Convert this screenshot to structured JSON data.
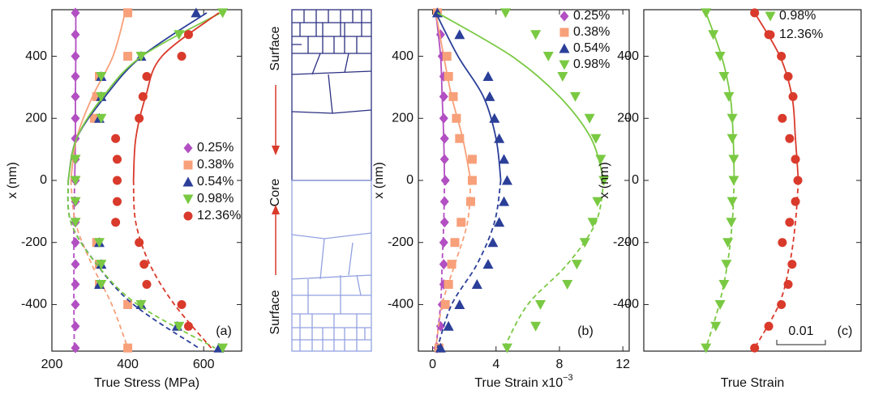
{
  "chart_data": [
    {
      "type": "scatter",
      "panel_label": "(a)",
      "xlabel": "True Stress (MPa)",
      "ylabel": "x (nm)",
      "xlim": [
        200,
        700
      ],
      "xticks": [
        200,
        400,
        600
      ],
      "ylim": [
        -550,
        550
      ],
      "yticks": [
        -400,
        -200,
        0,
        200,
        400
      ],
      "series": [
        {
          "name": "0.25%",
          "color": "#b24fc2",
          "marker": "diamond",
          "y": [
            540,
            470,
            400,
            335,
            270,
            200,
            135,
            68,
            0,
            -68,
            -135,
            -200,
            -270,
            -335,
            -400,
            -470,
            -540
          ],
          "x": [
            262,
            262,
            262,
            262,
            262,
            262,
            262,
            262,
            262,
            262,
            262,
            262,
            262,
            262,
            262,
            262,
            262
          ],
          "fit_y": [
            540,
            400,
            270,
            135,
            0,
            -135,
            -270,
            -400,
            -540
          ],
          "fit_x": [
            263,
            263,
            262,
            262,
            260,
            258,
            258,
            258,
            259
          ]
        },
        {
          "name": "0.38%",
          "color": "#f7a07a",
          "marker": "square",
          "y": [
            540,
            400,
            335,
            270,
            200,
            -200,
            -270,
            -335,
            -400,
            -540
          ],
          "x": [
            400,
            400,
            325,
            318,
            312,
            318,
            325,
            325,
            400,
            400
          ],
          "fit_y": [
            540,
            400,
            270,
            135,
            0,
            -135,
            -270,
            -400,
            -540
          ],
          "fit_x": [
            393,
            361,
            307,
            265,
            250,
            262,
            305,
            358,
            400
          ]
        },
        {
          "name": "0.54%",
          "color": "#2b3f99",
          "marker": "triangle-up",
          "y": [
            540,
            400,
            335,
            270,
            200,
            -200,
            -270,
            -335,
            -400,
            -470,
            -540
          ],
          "x": [
            580,
            435,
            330,
            330,
            325,
            325,
            330,
            325,
            435,
            530,
            640
          ],
          "fit_y": [
            540,
            400,
            270,
            135,
            0,
            -135,
            -270,
            -400,
            -540
          ],
          "fit_x": [
            608,
            437,
            340,
            265,
            243,
            250,
            318,
            415,
            587
          ]
        },
        {
          "name": "0.98%",
          "color": "#7ac943",
          "marker": "triangle-down",
          "y": [
            540,
            470,
            400,
            335,
            270,
            200,
            68,
            0,
            -68,
            -135,
            -200,
            -270,
            -335,
            -400,
            -470,
            -540
          ],
          "x": [
            650,
            535,
            435,
            330,
            330,
            330,
            262,
            262,
            262,
            262,
            325,
            330,
            330,
            435,
            535,
            650
          ],
          "fit_y": [
            540,
            400,
            270,
            135,
            0,
            -135,
            -270,
            -400,
            -540
          ],
          "fit_x": [
            645,
            437,
            335,
            265,
            243,
            250,
            318,
            426,
            630
          ]
        },
        {
          "name": "12.36%",
          "color": "#d93a2b",
          "marker": "circle",
          "y": [
            470,
            400,
            335,
            270,
            200,
            135,
            68,
            0,
            -68,
            -135,
            -200,
            -270,
            -335,
            -400,
            -470
          ],
          "x": [
            560,
            542,
            450,
            440,
            430,
            368,
            372,
            372,
            372,
            368,
            430,
            443,
            450,
            542,
            560
          ],
          "fit_y": [
            540,
            400,
            270,
            135,
            0,
            -135,
            -270,
            -400,
            -540
          ],
          "fit_x": [
            640,
            490,
            447,
            421,
            415,
            421,
            458,
            523,
            620
          ]
        }
      ]
    },
    {
      "type": "scatter",
      "panel_label": "(b)",
      "xlabel": "True Strain x10",
      "xlabel_exponent": "−3",
      "ylabel": "x (nm)",
      "xlim": [
        -0.9,
        12.4
      ],
      "xticks": [
        0,
        4,
        8,
        12
      ],
      "ylim": [
        -550,
        550
      ],
      "yticks": [
        -400,
        -200,
        0,
        200,
        400
      ],
      "series": [
        {
          "name": "0.25%",
          "color": "#b24fc2",
          "marker": "diamond",
          "y": [
            540,
            470,
            400,
            335,
            270,
            200,
            135,
            68,
            0,
            -68,
            -135,
            -200,
            -270,
            -335,
            -400,
            -470,
            -540
          ],
          "x": [
            0.3,
            0.5,
            0.6,
            0.7,
            0.7,
            0.7,
            0.75,
            0.75,
            0.8,
            0.75,
            0.75,
            0.7,
            0.7,
            0.7,
            0.6,
            0.5,
            0.3
          ],
          "fit_y": [
            540,
            400,
            270,
            135,
            0,
            -135,
            -270,
            -400,
            -540
          ],
          "fit_x": [
            0.2,
            0.5,
            0.6,
            0.7,
            0.75,
            0.7,
            0.6,
            0.5,
            0.2
          ]
        },
        {
          "name": "0.38%",
          "color": "#f7a07a",
          "marker": "square",
          "y": [
            540,
            400,
            335,
            270,
            200,
            135,
            68,
            0,
            -68,
            -135,
            -200,
            -270,
            -335,
            -400,
            -540
          ],
          "x": [
            0.3,
            0.9,
            1.0,
            1.3,
            1.5,
            1.7,
            2.5,
            2.5,
            2.4,
            1.8,
            1.4,
            1.2,
            1.0,
            0.8,
            0.4
          ],
          "fit_y": [
            540,
            400,
            270,
            135,
            0,
            -135,
            -270,
            -400,
            -540
          ],
          "fit_x": [
            0.2,
            0.7,
            1.2,
            1.9,
            2.4,
            2.2,
            1.4,
            0.6,
            0.2
          ]
        },
        {
          "name": "0.54%",
          "color": "#2b3f99",
          "marker": "triangle-up",
          "y": [
            540,
            470,
            335,
            270,
            200,
            135,
            68,
            0,
            -68,
            -135,
            -200,
            -270,
            -335,
            -400,
            -470,
            -540
          ],
          "x": [
            0.3,
            1.7,
            3.5,
            3.6,
            3.9,
            4.2,
            4.5,
            4.7,
            4.5,
            4.2,
            3.8,
            3.5,
            2.8,
            1.7,
            1.0,
            0.5
          ],
          "fit_y": [
            540,
            400,
            270,
            135,
            0,
            -135,
            -270,
            -400,
            -540
          ],
          "fit_x": [
            0.2,
            1.6,
            3.2,
            4.0,
            4.3,
            3.9,
            2.8,
            1.2,
            0.3
          ]
        },
        {
          "name": "0.98%",
          "color": "#7ac943",
          "marker": "triangle-down",
          "y": [
            540,
            470,
            400,
            335,
            270,
            200,
            135,
            68,
            0,
            -68,
            -135,
            -200,
            -270,
            -335,
            -400,
            -470,
            -540
          ],
          "x": [
            4.6,
            6.5,
            7.3,
            8.2,
            9.0,
            9.9,
            10.3,
            10.6,
            10.8,
            10.4,
            10.1,
            9.6,
            9.1,
            8.5,
            6.8,
            6.5,
            4.7
          ],
          "fit_y": [
            540,
            400,
            270,
            135,
            0,
            -135,
            -270,
            -400,
            -540
          ],
          "fit_x": [
            0.3,
            5.0,
            8.0,
            10.0,
            10.8,
            10.3,
            8.5,
            6.0,
            4.5
          ]
        }
      ]
    },
    {
      "type": "scatter",
      "panel_label": "(c)",
      "xlabel": "True Strain",
      "ylabel": "x (nm)",
      "xlim": [
        0,
        0.0447
      ],
      "ylim": [
        -550,
        550
      ],
      "yticks": [
        -400,
        -200,
        0,
        200,
        400
      ],
      "scale_bar": {
        "value": 0.01,
        "label": "0.01"
      },
      "series": [
        {
          "name": "0.98%",
          "color": "#7ac943",
          "marker": "triangle-down",
          "y": [
            540,
            470,
            400,
            335,
            270,
            200,
            135,
            68,
            0,
            -68,
            -135,
            -200,
            -270,
            -335,
            -400,
            -470,
            -540
          ],
          "x": [
            0.0128,
            0.0143,
            0.0157,
            0.0165,
            0.0175,
            0.0182,
            0.0182,
            0.0185,
            0.0185,
            0.0182,
            0.018,
            0.0173,
            0.017,
            0.0165,
            0.0157,
            0.0148,
            0.0128
          ],
          "fit_y": [
            540,
            400,
            270,
            135,
            0,
            -135,
            -270,
            -400,
            -540
          ],
          "fit_x": [
            0.0128,
            0.016,
            0.0178,
            0.0184,
            0.0186,
            0.0182,
            0.0172,
            0.0155,
            0.0128
          ]
        },
        {
          "name": "12.36%",
          "color": "#d93a2b",
          "marker": "circle",
          "y": [
            540,
            470,
            400,
            335,
            270,
            200,
            135,
            68,
            0,
            -68,
            -135,
            -200,
            -270,
            -335,
            -400,
            -470,
            -540
          ],
          "x": [
            0.0228,
            0.0257,
            0.0283,
            0.0297,
            0.0307,
            0.0285,
            0.03,
            0.0312,
            0.0317,
            0.0312,
            0.03,
            0.0285,
            0.0305,
            0.0297,
            0.0283,
            0.0257,
            0.0228
          ],
          "fit_y": [
            540,
            400,
            270,
            135,
            0,
            -135,
            -270,
            -400,
            -540
          ],
          "fit_x": [
            0.0228,
            0.028,
            0.0305,
            0.0312,
            0.0318,
            0.0312,
            0.03,
            0.0278,
            0.0228
          ]
        }
      ]
    }
  ],
  "diagram": {
    "labels": [
      "Surface",
      "Core",
      "Surface"
    ]
  }
}
